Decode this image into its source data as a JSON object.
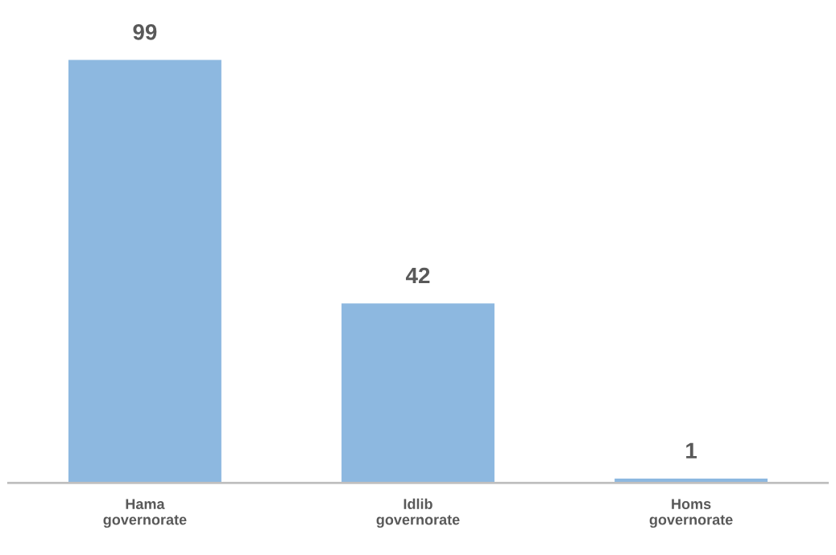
{
  "chart_data": {
    "type": "bar",
    "categories": [
      "Hama\ngovernorate",
      "Idlib\ngovernorate",
      "Homs\ngovernorate"
    ],
    "values": [
      99,
      42,
      1
    ],
    "color": "#8db8e0",
    "data_labels": true,
    "tick_labels": "x",
    "grid": false,
    "legend": false
  }
}
